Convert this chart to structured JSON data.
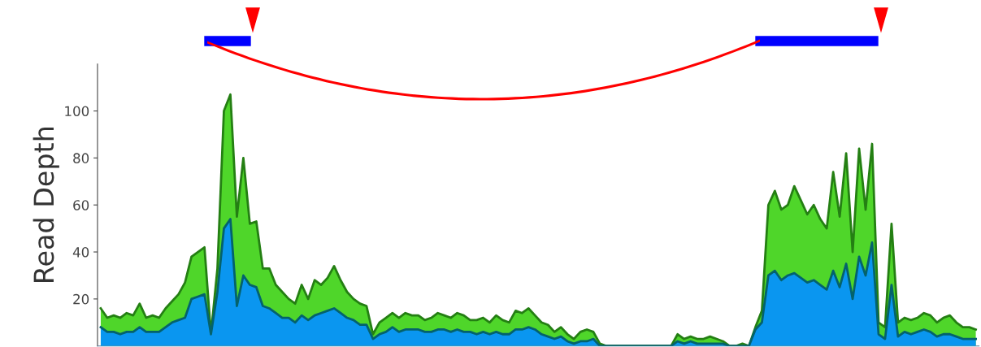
{
  "chart_data": {
    "type": "area",
    "ylabel": "Read Depth",
    "categories": [
      null,
      null,
      null,
      null,
      null,
      null,
      null,
      null,
      null,
      null,
      null,
      null,
      null,
      null,
      null,
      null,
      null,
      null,
      null,
      null,
      null,
      null,
      null,
      null,
      null,
      null,
      null,
      null,
      null,
      null,
      null,
      null,
      null,
      null,
      null,
      null,
      null,
      null,
      null,
      null,
      null,
      null,
      null,
      null,
      null,
      null,
      null,
      null,
      null,
      null,
      null,
      null,
      null,
      null,
      null,
      null,
      null,
      null,
      null,
      null,
      null,
      null,
      null,
      null,
      null,
      null,
      null,
      null,
      null,
      null,
      null,
      null,
      null,
      null,
      null,
      null,
      null,
      null,
      null,
      null,
      null,
      null,
      null,
      null,
      null,
      null,
      null,
      null,
      null,
      null,
      null,
      null,
      null,
      null,
      null,
      null,
      null,
      null,
      null,
      null,
      null,
      null,
      null,
      null,
      null,
      null,
      null,
      null,
      null,
      null,
      null,
      null,
      null,
      null,
      null,
      null,
      null,
      null,
      null,
      null,
      null,
      null,
      null,
      null,
      null,
      null,
      null,
      null,
      null,
      null,
      null,
      null,
      null,
      null,
      null,
      null
    ],
    "series": [
      {
        "color": "#4fd62a",
        "values": [
          16,
          12,
          13,
          12,
          14,
          13,
          18,
          12,
          13,
          12,
          16,
          19,
          22,
          27,
          38,
          40,
          42,
          5,
          33,
          100,
          107,
          55,
          80,
          52,
          53,
          33,
          33,
          26,
          23,
          20,
          18,
          26,
          20,
          28,
          26,
          29,
          34,
          28,
          23,
          20,
          18,
          17,
          5,
          10,
          12,
          14,
          12,
          14,
          13,
          13,
          11,
          12,
          14,
          13,
          12,
          14,
          13,
          11,
          11,
          12,
          10,
          13,
          11,
          10,
          15,
          14,
          16,
          13,
          10,
          9,
          6,
          8,
          5,
          3,
          6,
          7,
          6,
          1,
          0,
          0,
          0,
          0,
          0,
          0,
          0,
          0,
          0,
          0,
          0,
          5,
          3,
          4,
          3,
          3,
          4,
          3,
          2,
          0,
          0,
          1,
          0,
          8,
          15,
          60,
          66,
          58,
          60,
          68,
          62,
          56,
          60,
          54,
          50,
          74,
          55,
          82,
          40,
          84,
          58,
          86,
          10,
          8,
          52,
          10,
          12,
          11,
          12,
          14,
          13,
          10,
          12,
          13,
          10,
          8,
          8,
          7
        ]
      },
      {
        "color": "#0a96f0",
        "values": [
          8,
          6,
          6,
          5,
          6,
          6,
          8,
          6,
          6,
          6,
          8,
          10,
          11,
          12,
          20,
          21,
          22,
          5,
          23,
          50,
          54,
          17,
          30,
          26,
          25,
          17,
          16,
          14,
          12,
          12,
          10,
          13,
          11,
          13,
          14,
          15,
          16,
          14,
          12,
          11,
          9,
          9,
          3,
          5,
          6,
          8,
          6,
          7,
          7,
          7,
          6,
          6,
          7,
          7,
          6,
          7,
          6,
          6,
          5,
          6,
          5,
          6,
          5,
          5,
          7,
          7,
          8,
          7,
          5,
          4,
          3,
          4,
          2,
          1,
          2,
          2,
          3,
          0,
          0,
          0,
          0,
          0,
          0,
          0,
          0,
          0,
          0,
          0,
          0,
          2,
          1,
          2,
          1,
          1,
          1,
          1,
          1,
          0,
          0,
          0,
          0,
          7,
          10,
          30,
          32,
          28,
          30,
          31,
          29,
          27,
          28,
          26,
          24,
          32,
          25,
          35,
          20,
          38,
          30,
          44,
          5,
          3,
          26,
          4,
          6,
          5,
          6,
          7,
          6,
          4,
          5,
          5,
          4,
          3,
          3,
          3
        ]
      }
    ],
    "ylim": [
      0,
      120
    ],
    "yticks": [
      20,
      40,
      60,
      80,
      100
    ],
    "tick_labels": "y",
    "grid": false,
    "legend": false
  }
}
